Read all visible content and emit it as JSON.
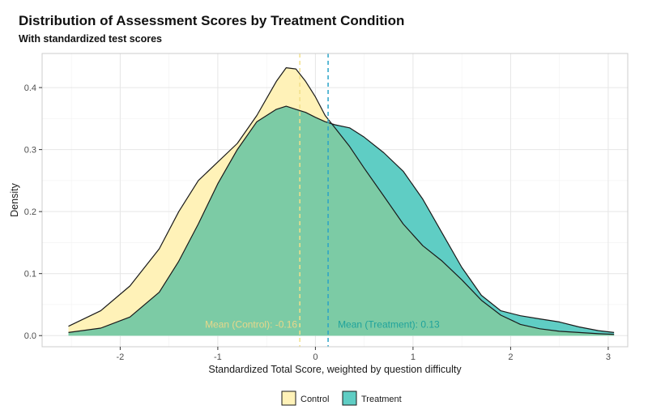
{
  "title": "Distribution of Assessment Scores by Treatment Condition",
  "subtitle": "With standardized test scores",
  "colors": {
    "control_fill": "#FFF2B8",
    "treatment_fill": "#5FCDC4",
    "overlap_fill": "#7CCBA5",
    "control_mean_line": "#F2E08A",
    "treatment_mean_line": "#2AA3C8",
    "control_annotation": "#E8D78A",
    "treatment_annotation": "#1FA39B",
    "outline": "#1a1a1a",
    "grid_major": "#e6e6e6",
    "grid_minor": "#f2f2f2",
    "panel_border": "#cccccc"
  },
  "chart_data": {
    "type": "area",
    "title": "Distribution of Assessment Scores by Treatment Condition",
    "subtitle": "With standardized test scores",
    "xlabel": "Standardized Total Score, weighted by question difficulty",
    "ylabel": "Density",
    "xlim": [
      -2.8,
      3.2
    ],
    "ylim": [
      -0.018,
      0.455
    ],
    "x_ticks": [
      -2,
      -1,
      0,
      1,
      2,
      3
    ],
    "y_ticks": [
      0.0,
      0.1,
      0.2,
      0.3,
      0.4
    ],
    "x_tick_labels": [
      "-2",
      "-1",
      "0",
      "1",
      "2",
      "3"
    ],
    "y_tick_labels": [
      "0.0",
      "0.1",
      "0.2",
      "0.3",
      "0.4"
    ],
    "grid": true,
    "legend_position": "bottom",
    "series": [
      {
        "name": "Control",
        "x": [
          -2.53,
          -2.2,
          -1.9,
          -1.6,
          -1.4,
          -1.2,
          -1.0,
          -0.8,
          -0.6,
          -0.4,
          -0.3,
          -0.2,
          -0.1,
          0.0,
          0.1,
          0.2,
          0.35,
          0.5,
          0.7,
          0.9,
          1.1,
          1.3,
          1.5,
          1.7,
          1.9,
          2.1,
          2.3,
          2.5,
          2.7,
          2.9,
          3.06
        ],
        "y": [
          0.015,
          0.04,
          0.08,
          0.14,
          0.2,
          0.25,
          0.28,
          0.31,
          0.355,
          0.41,
          0.432,
          0.43,
          0.41,
          0.385,
          0.355,
          0.335,
          0.305,
          0.27,
          0.225,
          0.18,
          0.145,
          0.12,
          0.09,
          0.057,
          0.033,
          0.018,
          0.011,
          0.007,
          0.005,
          0.003,
          0.002
        ]
      },
      {
        "name": "Treatment",
        "x": [
          -2.53,
          -2.2,
          -1.9,
          -1.6,
          -1.4,
          -1.2,
          -1.0,
          -0.8,
          -0.6,
          -0.4,
          -0.3,
          -0.2,
          -0.1,
          0.0,
          0.1,
          0.2,
          0.35,
          0.5,
          0.7,
          0.9,
          1.1,
          1.3,
          1.5,
          1.7,
          1.9,
          2.1,
          2.3,
          2.5,
          2.7,
          2.9,
          3.06
        ],
        "y": [
          0.005,
          0.012,
          0.03,
          0.07,
          0.12,
          0.18,
          0.245,
          0.3,
          0.345,
          0.365,
          0.37,
          0.365,
          0.36,
          0.352,
          0.345,
          0.34,
          0.335,
          0.32,
          0.295,
          0.265,
          0.22,
          0.165,
          0.11,
          0.065,
          0.04,
          0.032,
          0.027,
          0.022,
          0.014,
          0.008,
          0.005
        ]
      }
    ],
    "mean_lines": [
      {
        "name": "Control",
        "x": -0.16
      },
      {
        "name": "Treatment",
        "x": 0.13
      }
    ],
    "annotations": [
      {
        "text": "Mean (Control): -0.16",
        "x": -0.16,
        "y": 0.018,
        "align": "right"
      },
      {
        "text": "Mean (Treatment): 0.13",
        "x": 0.13,
        "y": 0.018,
        "align": "left"
      }
    ],
    "legend": [
      "Control",
      "Treatment"
    ]
  }
}
